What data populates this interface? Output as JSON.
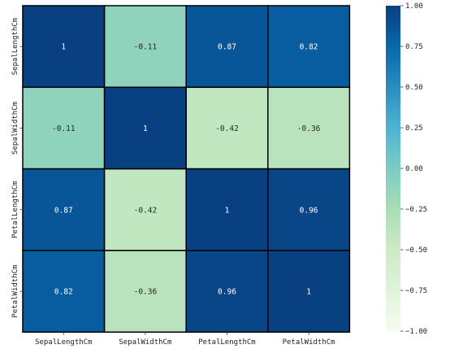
{
  "chart_data": {
    "type": "heatmap",
    "title": "",
    "xlabel": "",
    "ylabel": "",
    "x_labels": [
      "SepalLengthCm",
      "SepalWidthCm",
      "PetalLengthCm",
      "PetalWidthCm"
    ],
    "y_labels": [
      "SepalLengthCm",
      "SepalWidthCm",
      "PetalLengthCm",
      "PetalWidthCm"
    ],
    "values": [
      [
        1.0,
        -0.11,
        0.87,
        0.82
      ],
      [
        -0.11,
        1.0,
        -0.42,
        -0.36
      ],
      [
        0.87,
        -0.42,
        1.0,
        0.96
      ],
      [
        0.82,
        -0.36,
        0.96,
        1.0
      ]
    ],
    "annotations": [
      [
        "1",
        "-0.11",
        "0.87",
        "0.82"
      ],
      [
        "-0.11",
        "1",
        "-0.42",
        "-0.36"
      ],
      [
        "0.87",
        "-0.42",
        "1",
        "0.96"
      ],
      [
        "0.82",
        "-0.36",
        "0.96",
        "1"
      ]
    ],
    "colormap": "GnBu",
    "vmin": -1.0,
    "vmax": 1.0,
    "cell_border_color": "#000000",
    "colorbar": {
      "ticks": [
        1.0,
        0.75,
        0.5,
        0.25,
        0.0,
        -0.25,
        -0.5,
        -0.75,
        -1.0
      ],
      "tick_labels": [
        "1.00",
        "0.75",
        "0.50",
        "0.25",
        "0.00",
        "−0.25",
        "−0.50",
        "−0.75",
        "−1.00"
      ]
    },
    "colormap_stops": [
      "#f7fcf0",
      "#e0f3db",
      "#ccebc5",
      "#a8ddb5",
      "#7bccc4",
      "#4eb3d3",
      "#2b8cbe",
      "#0868ac",
      "#084081"
    ]
  }
}
